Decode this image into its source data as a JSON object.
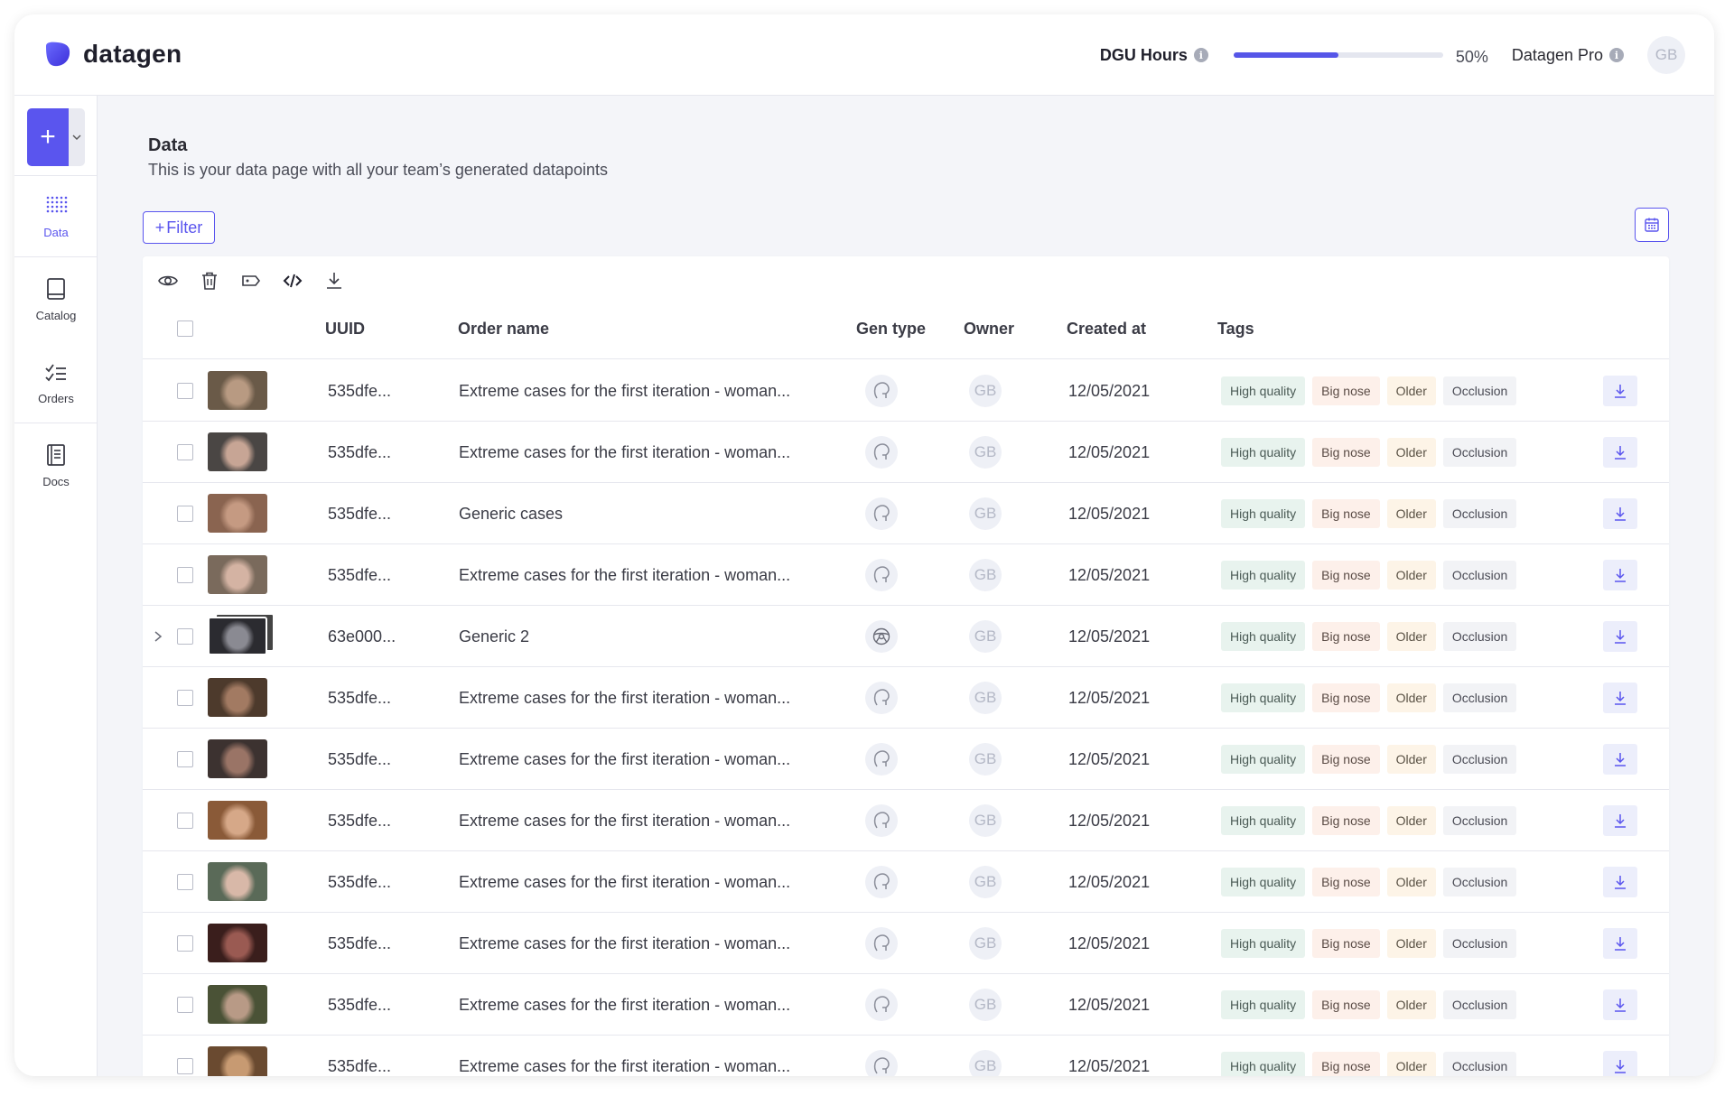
{
  "header": {
    "brand": "datagen",
    "usage_label": "DGU Hours",
    "usage_value": 0.5,
    "usage_pct_text": "50%",
    "plan_label": "Datagen Pro",
    "user_initials": "GB",
    "accent_color": "#5a55ee"
  },
  "sidebar": {
    "items": [
      {
        "label": "Data",
        "icon": "data-grid-icon",
        "active": true
      },
      {
        "label": "Catalog",
        "icon": "catalog-icon",
        "active": false
      },
      {
        "label": "Orders",
        "icon": "orders-checklist-icon",
        "active": false
      },
      {
        "label": "Docs",
        "icon": "docs-icon",
        "active": false
      }
    ]
  },
  "page": {
    "title": "Data",
    "subtitle": "This is your data page with all your team’s generated datapoints",
    "filter_label": "Filter"
  },
  "table": {
    "toolbar": [
      "view-icon",
      "delete-icon",
      "tag-icon",
      "code-icon",
      "download-icon"
    ],
    "columns": {
      "uuid": "UUID",
      "order_name": "Order name",
      "gen_type": "Gen type",
      "owner": "Owner",
      "created_at": "Created at",
      "tags": "Tags"
    },
    "rows": [
      {
        "uuid": "535dfe...",
        "order_name": "Extreme cases for the first iteration - woman...",
        "gen_type": "face",
        "owner": "GB",
        "created_at": "12/05/2021",
        "tags": [
          "High quality",
          "Big nose",
          "Older",
          "Occlusion"
        ],
        "expandable": false,
        "thumb": [
          "#6a5a48",
          "#b89a82"
        ]
      },
      {
        "uuid": "535dfe...",
        "order_name": "Extreme cases for the first iteration - woman...",
        "gen_type": "face",
        "owner": "GB",
        "created_at": "12/05/2021",
        "tags": [
          "High quality",
          "Big nose",
          "Older",
          "Occlusion"
        ],
        "expandable": false,
        "thumb": [
          "#4a4644",
          "#c7a595"
        ]
      },
      {
        "uuid": "535dfe...",
        "order_name": "Generic cases",
        "gen_type": "face",
        "owner": "GB",
        "created_at": "12/05/2021",
        "tags": [
          "High quality",
          "Big nose",
          "Older",
          "Occlusion"
        ],
        "expandable": false,
        "thumb": [
          "#8a6450",
          "#c59a82"
        ]
      },
      {
        "uuid": "535dfe...",
        "order_name": "Extreme cases for the first iteration - woman...",
        "gen_type": "face",
        "owner": "GB",
        "created_at": "12/05/2021",
        "tags": [
          "High quality",
          "Big nose",
          "Older",
          "Occlusion"
        ],
        "expandable": false,
        "thumb": [
          "#7a6a5c",
          "#d4b3a3"
        ]
      },
      {
        "uuid": "63e000...",
        "order_name": "Generic 2",
        "gen_type": "car",
        "owner": "GB",
        "created_at": "12/05/2021",
        "tags": [
          "High quality",
          "Big nose",
          "Older",
          "Occlusion"
        ],
        "expandable": true,
        "thumb": [
          "#2b2b30",
          "#8a8a92"
        ]
      },
      {
        "uuid": "535dfe...",
        "order_name": "Extreme cases for the first iteration - woman...",
        "gen_type": "face",
        "owner": "GB",
        "created_at": "12/05/2021",
        "tags": [
          "High quality",
          "Big nose",
          "Older",
          "Occlusion"
        ],
        "expandable": false,
        "thumb": [
          "#4d3a2c",
          "#a27a62"
        ]
      },
      {
        "uuid": "535dfe...",
        "order_name": "Extreme cases for the first iteration - woman...",
        "gen_type": "face",
        "owner": "GB",
        "created_at": "12/05/2021",
        "tags": [
          "High quality",
          "Big nose",
          "Older",
          "Occlusion"
        ],
        "expandable": false,
        "thumb": [
          "#3c3230",
          "#9a7466"
        ]
      },
      {
        "uuid": "535dfe...",
        "order_name": "Extreme cases for the first iteration - woman...",
        "gen_type": "face",
        "owner": "GB",
        "created_at": "12/05/2021",
        "tags": [
          "High quality",
          "Big nose",
          "Older",
          "Occlusion"
        ],
        "expandable": false,
        "thumb": [
          "#8a5a38",
          "#d6a888"
        ]
      },
      {
        "uuid": "535dfe...",
        "order_name": "Extreme cases for the first iteration - woman...",
        "gen_type": "face",
        "owner": "GB",
        "created_at": "12/05/2021",
        "tags": [
          "High quality",
          "Big nose",
          "Older",
          "Occlusion"
        ],
        "expandable": false,
        "thumb": [
          "#5a6a58",
          "#d8b8a8"
        ]
      },
      {
        "uuid": "535dfe...",
        "order_name": "Extreme cases for the first iteration - woman...",
        "gen_type": "face",
        "owner": "GB",
        "created_at": "12/05/2021",
        "tags": [
          "High quality",
          "Big nose",
          "Older",
          "Occlusion"
        ],
        "expandable": false,
        "thumb": [
          "#3a1e1c",
          "#9a5a52"
        ]
      },
      {
        "uuid": "535dfe...",
        "order_name": "Extreme cases for the first iteration - woman...",
        "gen_type": "face",
        "owner": "GB",
        "created_at": "12/05/2021",
        "tags": [
          "High quality",
          "Big nose",
          "Older",
          "Occlusion"
        ],
        "expandable": false,
        "thumb": [
          "#4a5236",
          "#b89a86"
        ]
      },
      {
        "uuid": "535dfe...",
        "order_name": "Extreme cases for the first iteration - woman...",
        "gen_type": "face",
        "owner": "GB",
        "created_at": "12/05/2021",
        "tags": [
          "High quality",
          "Big nose",
          "Older",
          "Occlusion"
        ],
        "expandable": false,
        "thumb": [
          "#6a4a30",
          "#c79a72"
        ]
      }
    ]
  }
}
